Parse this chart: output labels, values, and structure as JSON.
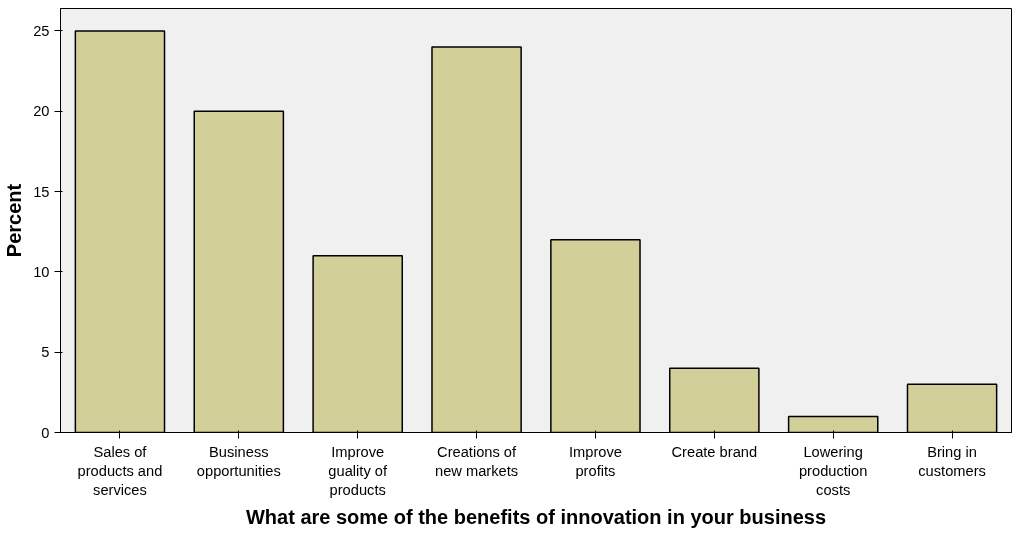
{
  "chart_data": {
    "type": "bar",
    "xlabel": "What are some of the benefits of innovation in your business",
    "ylabel": "Percent",
    "categories": [
      "Sales of products and services",
      "Business opportunities",
      "Improve guality of products",
      "Creations of new markets",
      "Improve profits",
      "Create brand",
      "Lowering production costs",
      "Bring in customers"
    ],
    "values": [
      25,
      20,
      11,
      24,
      12,
      4,
      1,
      3
    ],
    "color": "#d3cf98",
    "ylim": [
      0,
      26.4
    ],
    "yticks": [
      0,
      5,
      10,
      15,
      20,
      25
    ],
    "grid": false
  }
}
